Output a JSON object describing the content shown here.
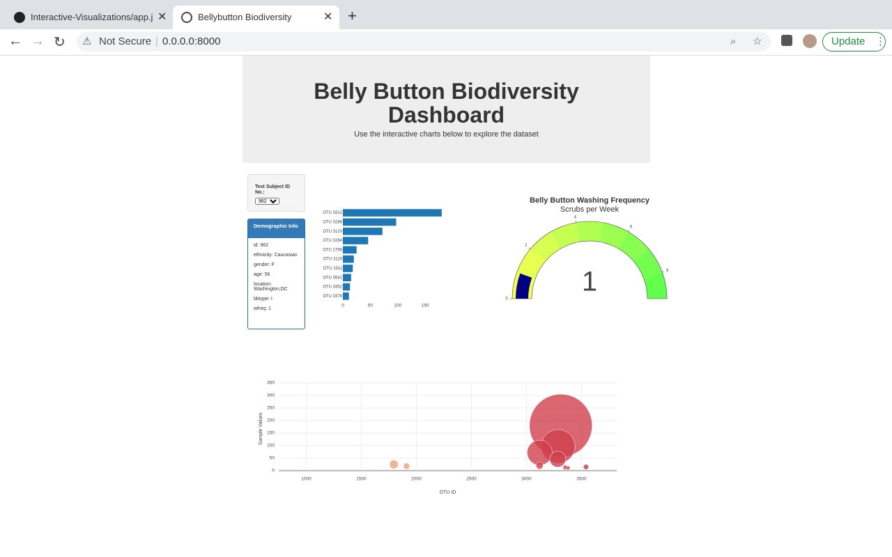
{
  "browser": {
    "tabs": [
      "Interactive-Visualizations/app.j",
      "Bellybutton Biodiversity"
    ],
    "security": "Not Secure",
    "url": "0.0.0.0:8000",
    "update": "Update"
  },
  "header": {
    "title": "Belly Button Biodiversity Dashboard",
    "subtitle": "Use the interactive charts below to explore the dataset"
  },
  "selector": {
    "label": "Test Subject ID No.:",
    "value": "962"
  },
  "demographic": {
    "title": "Demographic Info",
    "rows": [
      "id: 962",
      "ethnicity: Caucasian",
      "gender: F",
      "age: 56",
      "location: Washington,DC",
      "bbtype: I",
      "wfreq: 1"
    ]
  },
  "chart_data": [
    {
      "type": "hbar",
      "categories": [
        "OTU 3312",
        "OTU 3288",
        "OTU 3120",
        "OTU 3284",
        "OTU 1795",
        "OTU 3119",
        "OTU 1911",
        "OTU 3541",
        "OTU 3352",
        "OTU 3378"
      ],
      "values": [
        180,
        97,
        72,
        46,
        25,
        20,
        18,
        15,
        13,
        11
      ],
      "color": "#1f77b4",
      "xlim": [
        0,
        189
      ],
      "xticks": [
        0,
        50,
        100,
        150
      ]
    },
    {
      "type": "gauge",
      "title": "Belly Button Washing Frequency",
      "subtitle": "Scrubs per Week",
      "value": 1,
      "range": [
        0,
        9
      ],
      "ticks": [
        0,
        2,
        4,
        6,
        8
      ],
      "bar_color": "#000080",
      "step_colors": [
        "#f4ff4c",
        "#e8ff50",
        "#d6ff52",
        "#c4ff52",
        "#b0ff50",
        "#9cff50",
        "#88ff50",
        "#74ff4e",
        "#62ff4c"
      ]
    },
    {
      "type": "bubble",
      "xlabel": "OTU ID",
      "ylabel": "Sample Values",
      "x": [
        3312,
        3288,
        3120,
        3284,
        1795,
        3119,
        1911,
        3541,
        3352,
        3378
      ],
      "values": [
        180,
        97,
        72,
        46,
        25,
        20,
        18,
        15,
        13,
        11
      ],
      "sizes": [
        180,
        97,
        72,
        46,
        25,
        20,
        18,
        15,
        13,
        11
      ],
      "colors": [
        "#d0404e",
        "#d0404e",
        "#d0404e",
        "#d0404e",
        "#f0a080",
        "#d0404e",
        "#f0a080",
        "#c83a48",
        "#d0404e",
        "#d0404e"
      ],
      "xlim": [
        750,
        3820
      ],
      "xticks": [
        1000,
        1500,
        2000,
        2500,
        3000,
        3500
      ],
      "ylim": [
        0,
        350
      ],
      "yticks": [
        0,
        50,
        100,
        150,
        200,
        250,
        300,
        350
      ],
      "grid": true
    }
  ]
}
